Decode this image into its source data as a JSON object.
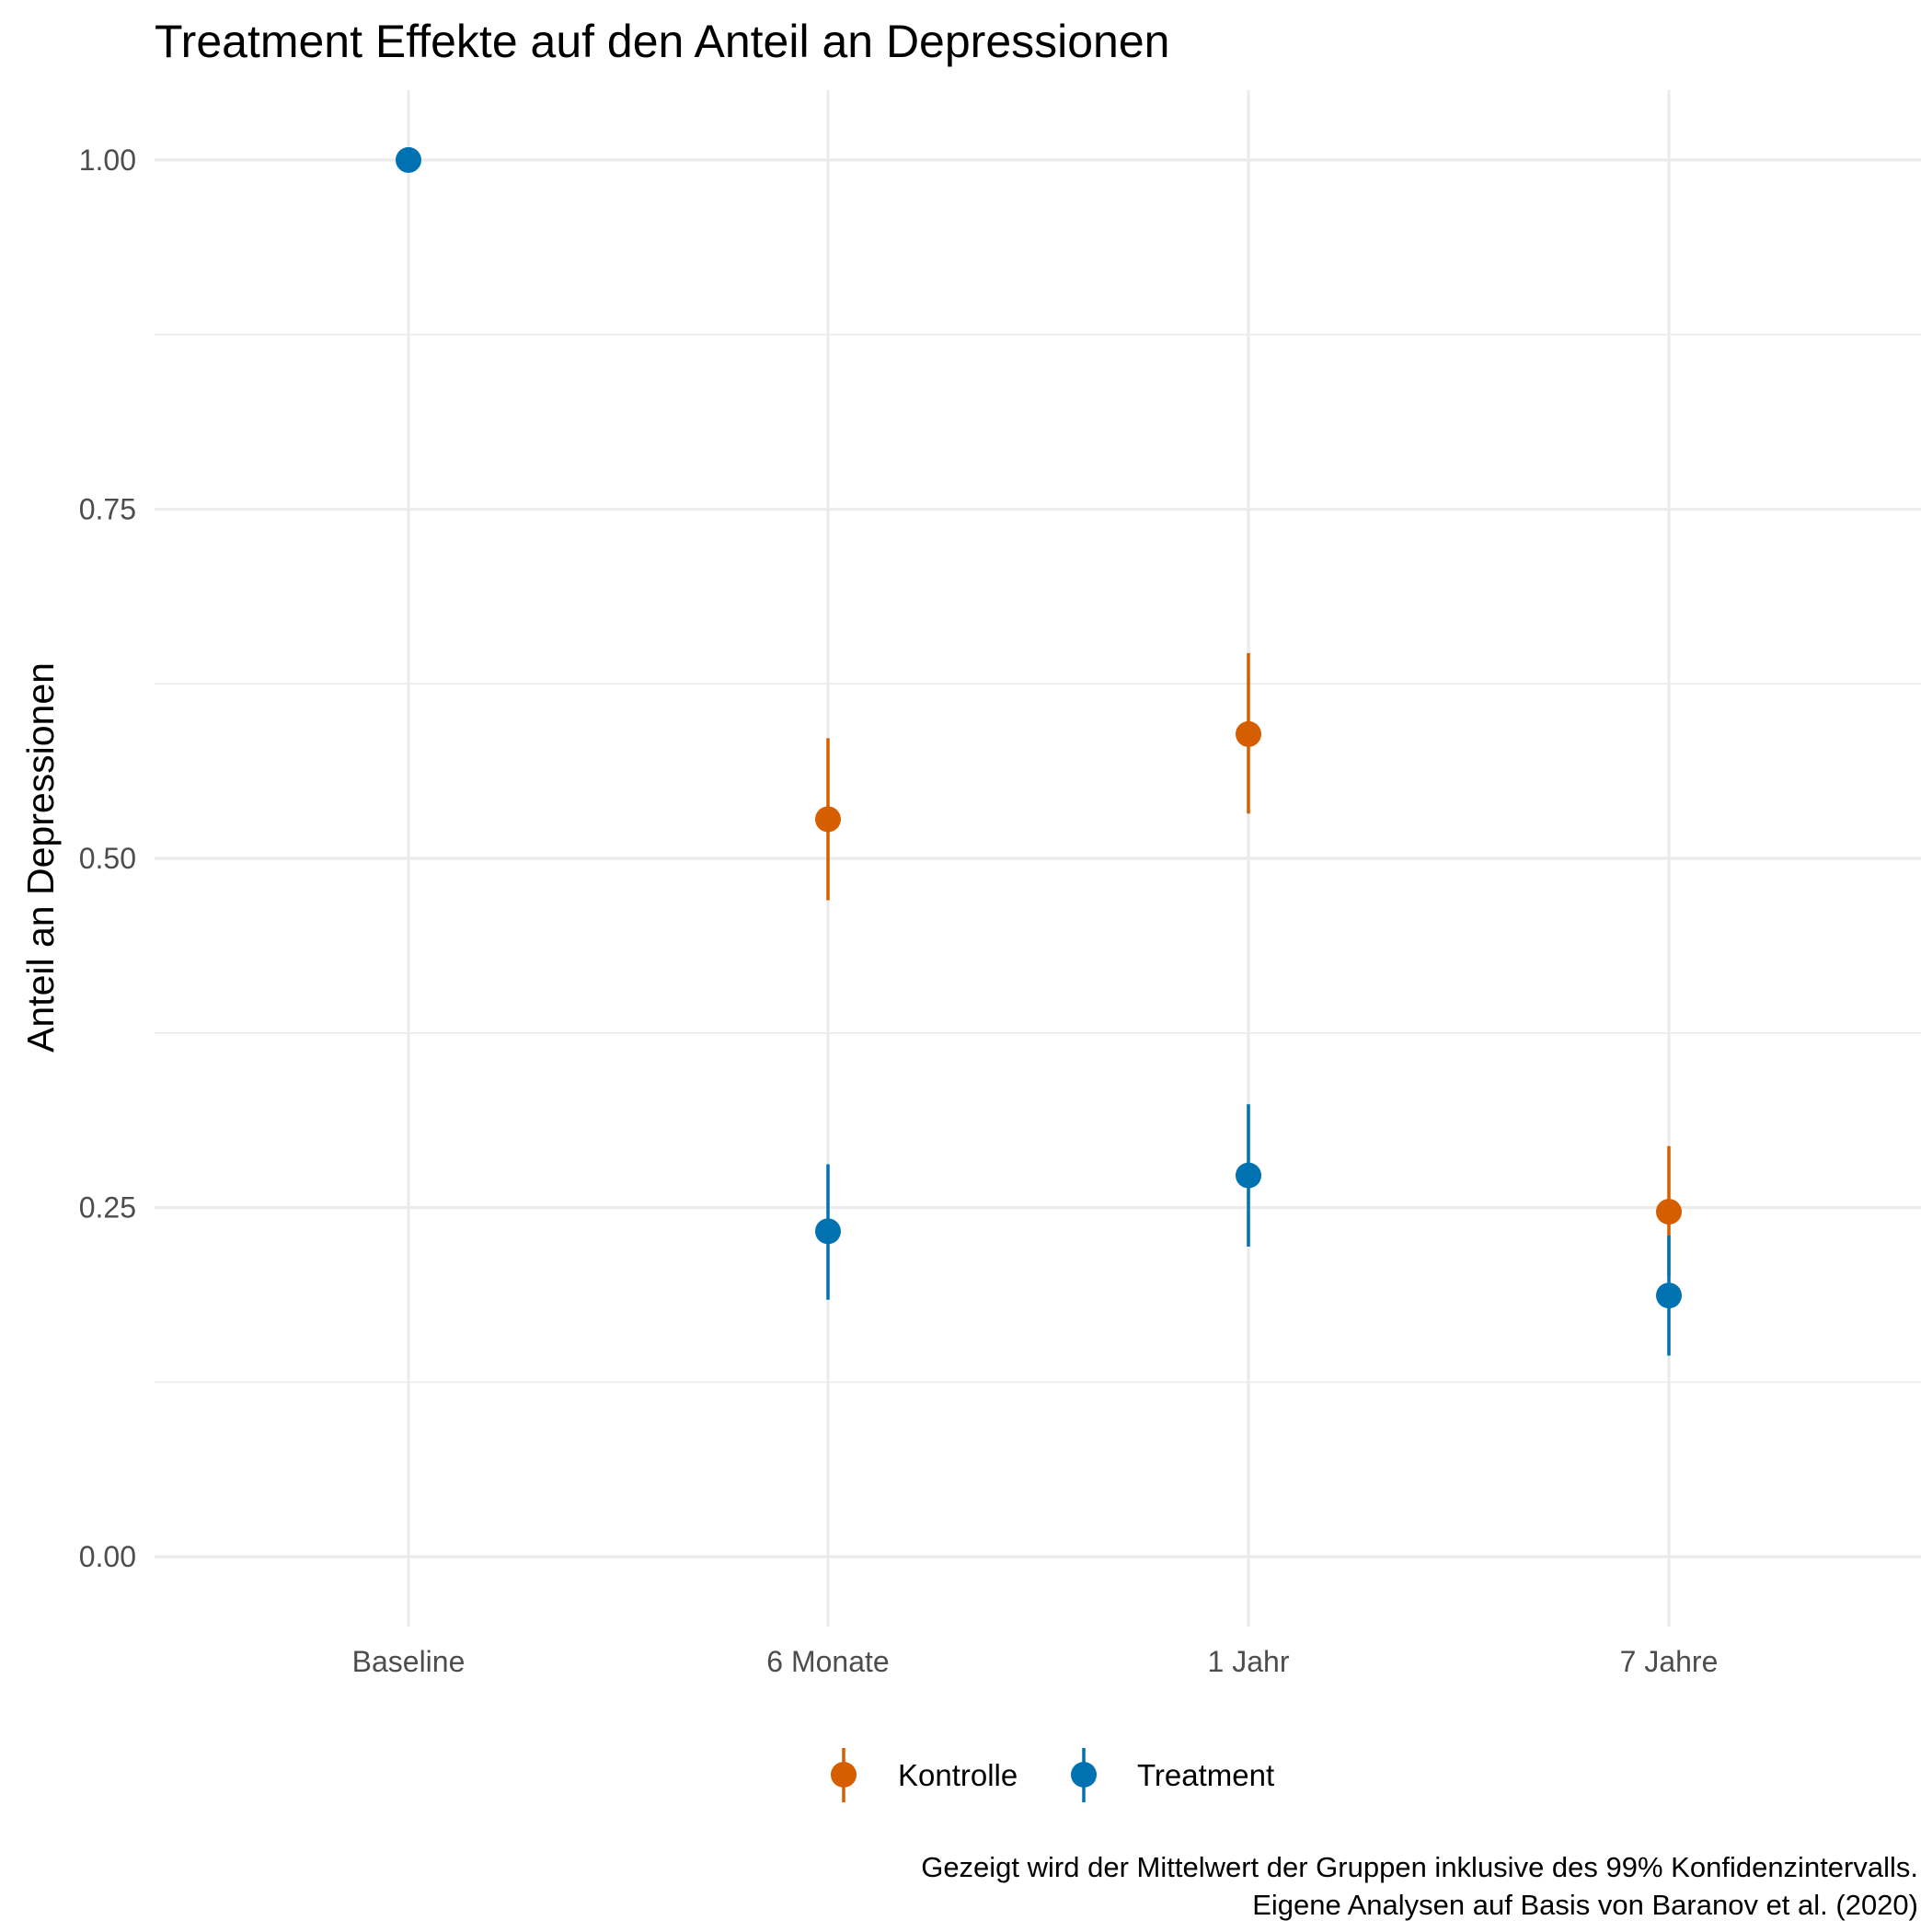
{
  "chart_data": {
    "type": "scatter",
    "title": "Treatment Effekte auf den Anteil an Depressionen",
    "xlabel": "",
    "ylabel": "Anteil an Depressionen",
    "categories": [
      "Baseline",
      "6 Monate",
      "1 Jahr",
      "7 Jahre"
    ],
    "y_ticks": [
      "0.00",
      "0.25",
      "0.50",
      "0.75",
      "1.00"
    ],
    "ylim": [
      -0.05,
      1.05
    ],
    "grid": true,
    "legend_position": "bottom",
    "series": [
      {
        "name": "Kontrolle",
        "color": "#D55E00",
        "points": [
          {
            "category": "6 Monate",
            "value": 0.528,
            "lower": 0.47,
            "upper": 0.586
          },
          {
            "category": "1 Jahr",
            "value": 0.589,
            "lower": 0.532,
            "upper": 0.647
          },
          {
            "category": "7 Jahre",
            "value": 0.247,
            "lower": 0.201,
            "upper": 0.294
          }
        ]
      },
      {
        "name": "Treatment",
        "color": "#0072B2",
        "points": [
          {
            "category": "Baseline",
            "value": 1.0,
            "lower": 1.0,
            "upper": 1.0
          },
          {
            "category": "6 Monate",
            "value": 0.233,
            "lower": 0.184,
            "upper": 0.281
          },
          {
            "category": "1 Jahr",
            "value": 0.273,
            "lower": 0.222,
            "upper": 0.324
          },
          {
            "category": "7 Jahre",
            "value": 0.187,
            "lower": 0.144,
            "upper": 0.23
          }
        ]
      }
    ],
    "caption": [
      "Gezeigt wird der Mittelwert der Gruppen inklusive des 99% Konfidenzintervalls.",
      "Eigene Analysen auf Basis von Baranov et al. (2020)"
    ]
  }
}
